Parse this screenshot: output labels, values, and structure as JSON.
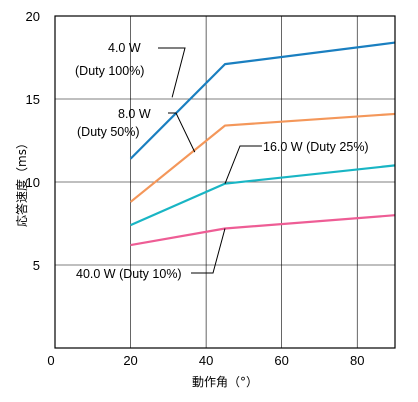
{
  "chart_data": {
    "type": "line",
    "title": "",
    "xlabel": "動作角（°）",
    "ylabel": "応答速度（ms）",
    "xlim": [
      0,
      90
    ],
    "ylim": [
      0,
      20
    ],
    "xticks": [
      0,
      20,
      40,
      60,
      80
    ],
    "yticks": [
      5,
      10,
      15,
      20
    ],
    "x_tick_labels": [
      "0",
      "20",
      "40",
      "60",
      "80"
    ],
    "y_tick_labels": [
      "5",
      "10",
      "15",
      "20"
    ],
    "grid": true,
    "legend": "none",
    "series": [
      {
        "name": "4.0 W (Duty 100%)",
        "color": "#1a7fc0",
        "x": [
          20,
          45,
          90
        ],
        "y": [
          11.4,
          17.1,
          18.4
        ]
      },
      {
        "name": "8.0 W (Duty 50%)",
        "color": "#f4975a",
        "x": [
          20,
          45,
          90
        ],
        "y": [
          8.8,
          13.4,
          14.1
        ]
      },
      {
        "name": "16.0 W (Duty 25%)",
        "color": "#19b5c4",
        "x": [
          20,
          45,
          90
        ],
        "y": [
          7.4,
          9.9,
          11.0
        ]
      },
      {
        "name": "40.0 W (Duty 10%)",
        "color": "#ee5d95",
        "x": [
          20,
          45,
          90
        ],
        "y": [
          6.2,
          7.2,
          8.0
        ]
      }
    ],
    "annotations": [
      {
        "series": 0,
        "lines": [
          "4.0 W",
          "(Duty 100%)"
        ],
        "point": [
          31,
          15.1
        ]
      },
      {
        "series": 1,
        "lines": [
          "8.0 W",
          "(Duty 50%)"
        ],
        "point": [
          37,
          11.8
        ]
      },
      {
        "series": 2,
        "lines": [
          "16.0 W (Duty 25%)"
        ],
        "point": [
          45,
          9.9
        ]
      },
      {
        "series": 3,
        "lines": [
          "40.0 W (Duty 10%)"
        ],
        "point": [
          45,
          7.2
        ]
      }
    ]
  }
}
